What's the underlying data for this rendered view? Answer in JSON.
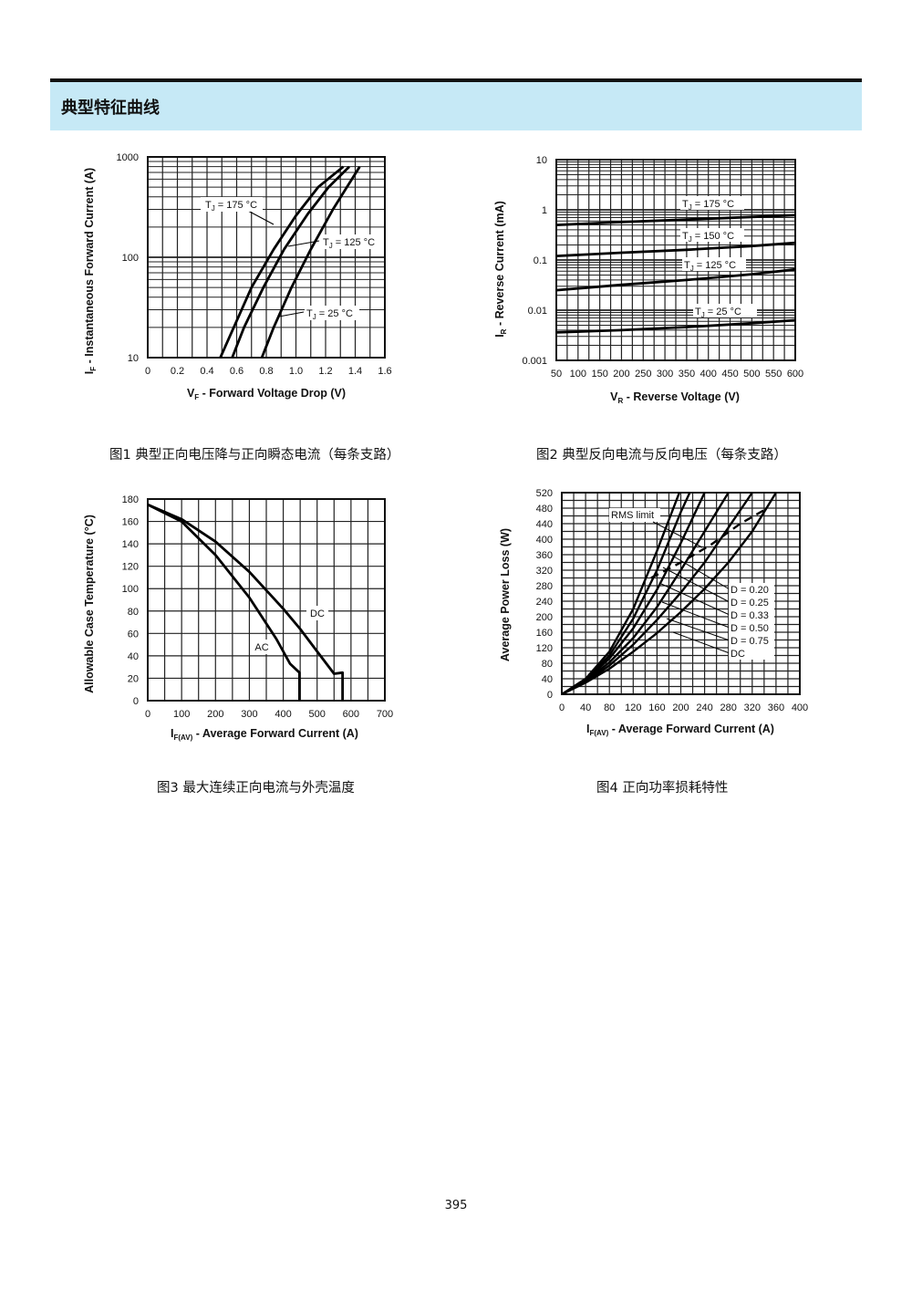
{
  "section": {
    "title": "典型特征曲线"
  },
  "page": {
    "number": "395"
  },
  "chart_data": [
    {
      "id": "fig1",
      "type": "line",
      "caption": "图1  典型正向电压降与正向瞬态电流（每条支路）",
      "xlabel_main": "V",
      "xlabel_sub": "F",
      "xlabel_rest": " - Forward Voltage Drop (V)",
      "ylabel_main": "I",
      "ylabel_sub": "F",
      "ylabel_rest": " - Instantaneous Forward Current (A)",
      "xlim": [
        0,
        1.6
      ],
      "ylim": [
        10,
        1000
      ],
      "yscale": "log",
      "xticks": [
        "0",
        "0.2",
        "0.4",
        "0.6",
        "0.8",
        "1.0",
        "1.2",
        "1.4",
        "1.6"
      ],
      "yticks": [
        "10",
        "100",
        "1000"
      ],
      "grid": true,
      "series": [
        {
          "name": "T  = 175 °C",
          "label_main": "T",
          "label_sub": "J",
          "label_rest": " = 175 °C",
          "x": [
            0.49,
            0.58,
            0.7,
            0.85,
            1.0,
            1.15,
            1.32
          ],
          "y": [
            10,
            20,
            50,
            120,
            260,
            500,
            800
          ]
        },
        {
          "name": "T  = 125 °C",
          "label_main": "T",
          "label_sub": "J",
          "label_rest": " = 125 °C",
          "x": [
            0.57,
            0.65,
            0.78,
            0.92,
            1.08,
            1.22,
            1.36
          ],
          "y": [
            10,
            20,
            50,
            120,
            270,
            500,
            800
          ]
        },
        {
          "name": "T  = 25 °C",
          "label_main": "T",
          "label_sub": "J",
          "label_rest": " = 25 °C",
          "x": [
            0.77,
            0.85,
            0.97,
            1.1,
            1.25,
            1.43
          ],
          "y": [
            10,
            20,
            50,
            120,
            300,
            800
          ]
        }
      ]
    },
    {
      "id": "fig2",
      "type": "line",
      "caption": "图2  典型反向电流与反向电压（每条支路）",
      "xlabel_main": "V",
      "xlabel_sub": "R",
      "xlabel_rest": " - Reverse Voltage (V)",
      "ylabel_main": "I",
      "ylabel_sub": "R",
      "ylabel_rest": " - Reverse Current (mA)",
      "xlim": [
        50,
        600
      ],
      "ylim": [
        0.001,
        10
      ],
      "yscale": "log",
      "xticks": [
        "50",
        "100",
        "150",
        "200",
        "250",
        "300",
        "350",
        "400",
        "450",
        "500",
        "550",
        "600"
      ],
      "yticks": [
        "0.001",
        "0.01",
        "0.1",
        "1",
        "10"
      ],
      "grid": true,
      "series": [
        {
          "name": "T  = 175 °C",
          "label_main": "T",
          "label_sub": "J",
          "label_rest": " = 175 °C",
          "x": [
            50,
            200,
            350,
            500,
            600
          ],
          "y": [
            0.5,
            0.57,
            0.64,
            0.72,
            0.78
          ]
        },
        {
          "name": "T  = 150 °C",
          "label_main": "T",
          "label_sub": "J",
          "label_rest": " = 150 °C",
          "x": [
            50,
            200,
            350,
            500,
            600
          ],
          "y": [
            0.12,
            0.14,
            0.16,
            0.19,
            0.22
          ]
        },
        {
          "name": "T  = 125 °C",
          "label_main": "T",
          "label_sub": "J",
          "label_rest": " = 125 °C",
          "x": [
            50,
            200,
            350,
            500,
            600
          ],
          "y": [
            0.025,
            0.032,
            0.04,
            0.052,
            0.065
          ]
        },
        {
          "name": "T  = 25 °C",
          "label_main": "T",
          "label_sub": "J",
          "label_rest": " = 25 °C",
          "x": [
            50,
            200,
            350,
            500,
            600
          ],
          "y": [
            0.0036,
            0.004,
            0.0046,
            0.0055,
            0.0063
          ]
        }
      ]
    },
    {
      "id": "fig3",
      "type": "line",
      "caption": "图3  最大连续正向电流与外壳温度",
      "xlabel_main": "I",
      "xlabel_sub": "F(AV)",
      "xlabel_rest": " - Average Forward Current (A)",
      "ylabel_main": "Allowable Case Temperature (°C)",
      "ylabel_sub": "",
      "ylabel_rest": "",
      "xlim": [
        0,
        700
      ],
      "ylim": [
        0,
        180
      ],
      "xticks": [
        "0",
        "100",
        "200",
        "300",
        "400",
        "500",
        "600",
        "700"
      ],
      "yticks": [
        "0",
        "20",
        "40",
        "60",
        "80",
        "100",
        "120",
        "140",
        "160",
        "180"
      ],
      "grid": true,
      "series": [
        {
          "name": "DC",
          "x": [
            0,
            100,
            200,
            300,
            400,
            450,
            500,
            550,
            575,
            575
          ],
          "y": [
            175,
            162,
            142,
            115,
            82,
            64,
            44,
            24,
            25,
            0
          ]
        },
        {
          "name": "AC",
          "x": [
            0,
            100,
            200,
            300,
            380,
            420,
            448,
            448
          ],
          "y": [
            175,
            160,
            130,
            92,
            55,
            33,
            25,
            0
          ]
        }
      ]
    },
    {
      "id": "fig4",
      "type": "line",
      "caption": "图4  正向功率损耗特性",
      "xlabel_main": "I",
      "xlabel_sub": "F(AV)",
      "xlabel_rest": " - Average Forward Current (A)",
      "ylabel_main": "Average Power Loss (W)",
      "ylabel_sub": "",
      "ylabel_rest": "",
      "xlim": [
        0,
        400
      ],
      "ylim": [
        0,
        520
      ],
      "xticks": [
        "0",
        "40",
        "80",
        "120",
        "160",
        "200",
        "240",
        "280",
        "320",
        "360",
        "400"
      ],
      "yticks": [
        "0",
        "40",
        "80",
        "120",
        "160",
        "200",
        "240",
        "280",
        "320",
        "360",
        "400",
        "440",
        "480",
        "520"
      ],
      "grid": true,
      "rms_label": "RMS limit",
      "rms_limit": {
        "x": [
          150,
          200,
          250,
          300,
          340
        ],
        "y": [
          300,
          340,
          385,
          440,
          475
        ]
      },
      "series": [
        {
          "name": "D = 0.20",
          "x": [
            0,
            40,
            80,
            120,
            160,
            200
          ],
          "y": [
            0,
            40,
            110,
            220,
            370,
            530
          ]
        },
        {
          "name": "D = 0.25",
          "x": [
            0,
            40,
            80,
            120,
            160,
            200,
            215
          ],
          "y": [
            0,
            38,
            100,
            195,
            320,
            470,
            520
          ]
        },
        {
          "name": "D = 0.33",
          "x": [
            0,
            40,
            80,
            120,
            160,
            200,
            240
          ],
          "y": [
            0,
            36,
            92,
            170,
            270,
            390,
            520
          ]
        },
        {
          "name": "D = 0.50",
          "x": [
            0,
            40,
            80,
            120,
            160,
            200,
            240,
            280
          ],
          "y": [
            0,
            34,
            82,
            145,
            225,
            320,
            420,
            520
          ]
        },
        {
          "name": "D = 0.75",
          "x": [
            0,
            40,
            80,
            120,
            160,
            200,
            240,
            280,
            320
          ],
          "y": [
            0,
            32,
            74,
            128,
            192,
            262,
            340,
            430,
            520
          ]
        },
        {
          "name": "DC",
          "x": [
            0,
            40,
            80,
            120,
            160,
            200,
            240,
            280,
            320,
            360
          ],
          "y": [
            0,
            30,
            66,
            110,
            158,
            212,
            272,
            340,
            420,
            520
          ]
        }
      ]
    }
  ]
}
